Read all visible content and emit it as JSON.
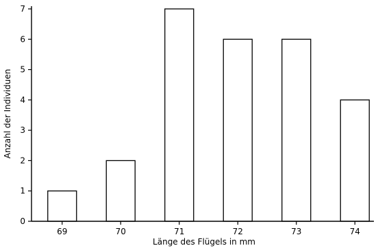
{
  "chart_data": {
    "type": "bar",
    "categories": [
      "69",
      "70",
      "71",
      "72",
      "73",
      "74"
    ],
    "values": [
      1,
      2,
      7,
      6,
      6,
      4
    ],
    "xlabel": "Länge des Flügels in mm",
    "ylabel": "Anzahl der Individuen",
    "ylim": [
      0,
      7
    ],
    "yticks": [
      0,
      1,
      2,
      3,
      4,
      5,
      6,
      7
    ],
    "grid": false,
    "legend": "none",
    "colors": {
      "bar_fill": "#ffffff",
      "bar_stroke": "#000000",
      "axis": "#000000"
    }
  }
}
